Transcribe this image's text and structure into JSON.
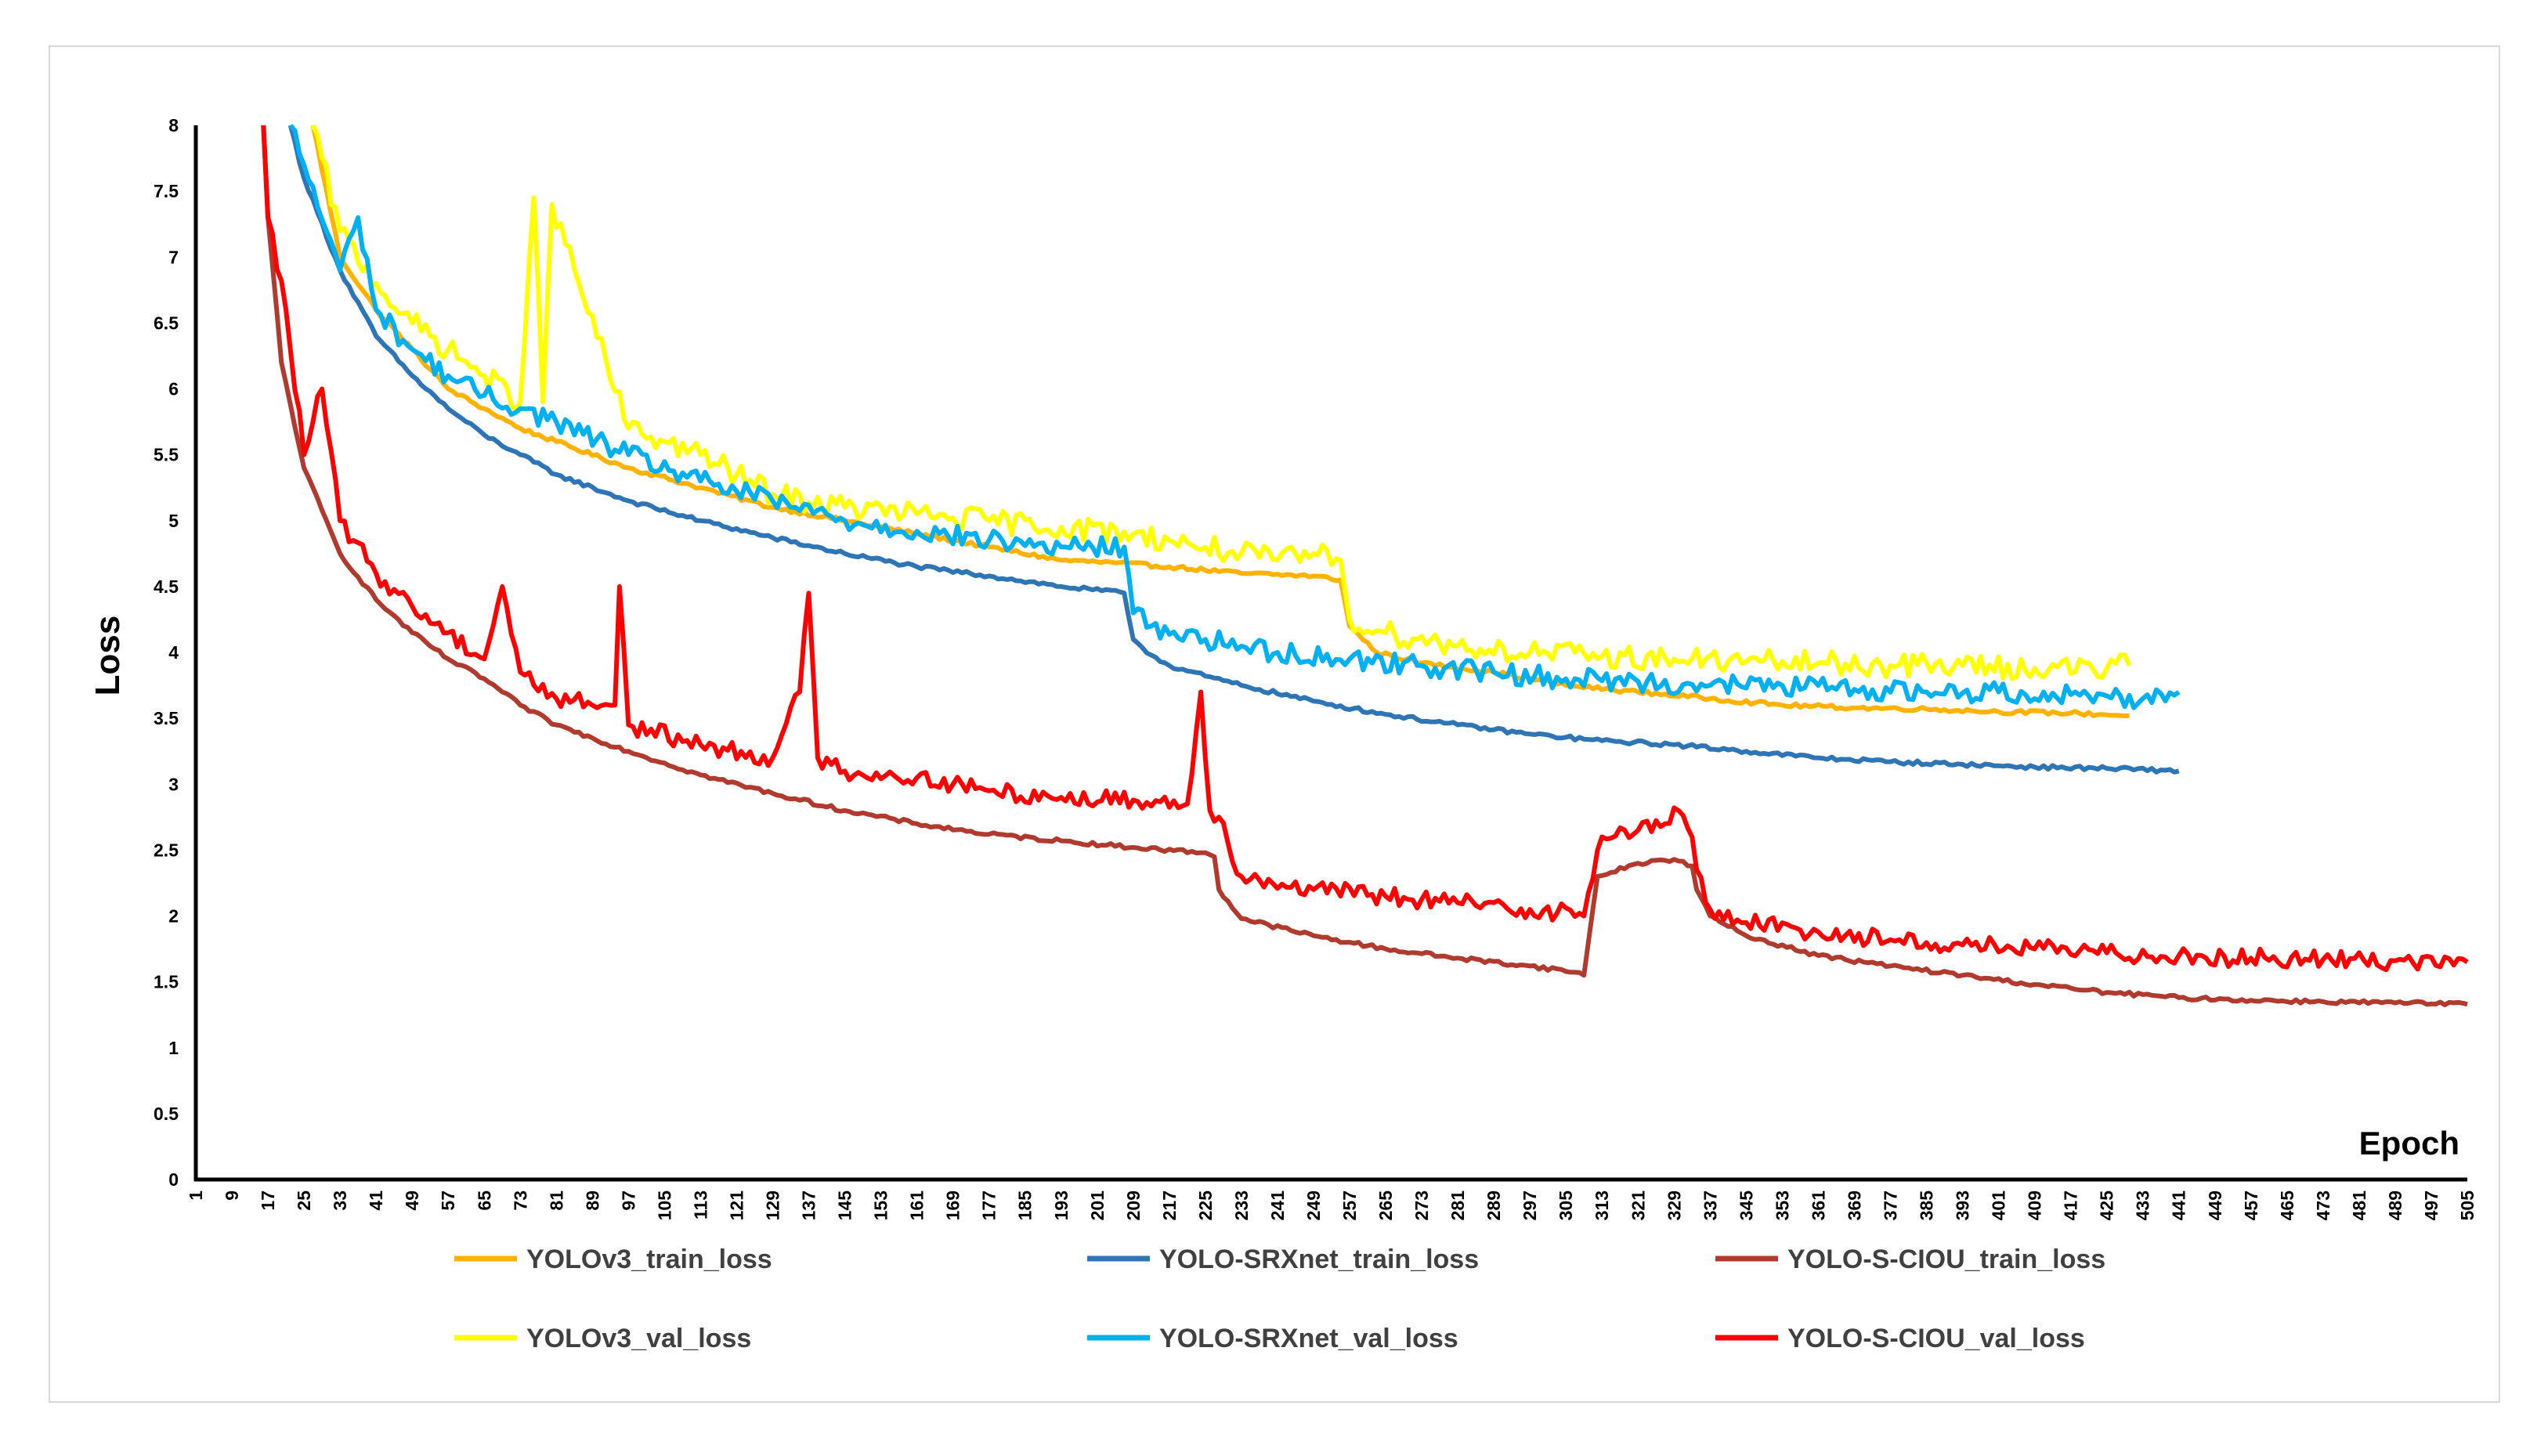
{
  "chart_data": {
    "type": "line",
    "title": "",
    "xlabel": "Epoch",
    "ylabel": "Loss",
    "ylim": [
      0,
      8
    ],
    "yticks": [
      "0",
      "0.5",
      "1",
      "1.5",
      "2",
      "2.5",
      "3",
      "3.5",
      "4",
      "4.5",
      "5",
      "5.5",
      "6",
      "6.5",
      "7",
      "7.5",
      "8"
    ],
    "xlim": [
      1,
      505
    ],
    "xticks": [
      1,
      9,
      17,
      25,
      33,
      41,
      49,
      57,
      65,
      73,
      81,
      89,
      97,
      105,
      113,
      121,
      129,
      137,
      145,
      153,
      161,
      169,
      177,
      185,
      193,
      201,
      209,
      217,
      225,
      233,
      241,
      249,
      257,
      265,
      273,
      281,
      289,
      297,
      305,
      313,
      321,
      329,
      337,
      345,
      353,
      361,
      369,
      377,
      385,
      393,
      401,
      409,
      417,
      425,
      433,
      441,
      449,
      457,
      465,
      473,
      481,
      489,
      497,
      505
    ],
    "grid": false,
    "legend_position": "bottom",
    "series": [
      {
        "name": "YOLOv3_train_loss",
        "color": "#FFB300",
        "x": [
          27,
          33,
          41,
          49,
          57,
          65,
          73,
          81,
          97,
          113,
          129,
          145,
          161,
          177,
          193,
          205,
          217,
          233,
          249,
          255,
          257,
          263,
          273,
          289,
          305,
          321,
          337,
          353,
          369,
          385,
          401,
          417,
          430
        ],
        "y": [
          8.0,
          7.0,
          6.6,
          6.3,
          6.0,
          5.85,
          5.7,
          5.6,
          5.4,
          5.25,
          5.1,
          5.0,
          4.9,
          4.8,
          4.7,
          4.68,
          4.65,
          4.6,
          4.58,
          4.55,
          4.2,
          4.0,
          3.92,
          3.85,
          3.75,
          3.7,
          3.65,
          3.6,
          3.58,
          3.57,
          3.55,
          3.54,
          3.52
        ]
      },
      {
        "name": "YOLO-SRXnet_train_loss",
        "color": "#2E75B6",
        "x": [
          22,
          25,
          33,
          41,
          49,
          57,
          65,
          73,
          81,
          97,
          113,
          129,
          145,
          161,
          177,
          193,
          207,
          209,
          213,
          217,
          225,
          233,
          249,
          265,
          281,
          297,
          313,
          329,
          345,
          361,
          377,
          393,
          409,
          425,
          441
        ],
        "y": [
          8.0,
          7.6,
          6.9,
          6.4,
          6.1,
          5.85,
          5.65,
          5.5,
          5.35,
          5.15,
          5.0,
          4.87,
          4.75,
          4.65,
          4.58,
          4.5,
          4.45,
          4.1,
          3.98,
          3.9,
          3.82,
          3.75,
          3.63,
          3.53,
          3.45,
          3.38,
          3.33,
          3.3,
          3.25,
          3.2,
          3.17,
          3.15,
          3.13,
          3.12,
          3.1
        ]
      },
      {
        "name": "YOLO-S-CIOU_train_loss",
        "color": "#B03A2E",
        "x": [
          16,
          17,
          20,
          25,
          33,
          41,
          49,
          57,
          65,
          73,
          81,
          97,
          113,
          129,
          145,
          161,
          177,
          193,
          209,
          225,
          227,
          228,
          233,
          249,
          265,
          281,
          297,
          308,
          309,
          312,
          321,
          329,
          333,
          334,
          337,
          345,
          361,
          377,
          393,
          409,
          425,
          441,
          457,
          473,
          489,
          505
        ],
        "y": [
          8.0,
          7.3,
          6.2,
          5.4,
          4.75,
          4.4,
          4.15,
          3.95,
          3.8,
          3.6,
          3.45,
          3.25,
          3.07,
          2.93,
          2.8,
          2.7,
          2.62,
          2.57,
          2.52,
          2.48,
          2.45,
          2.2,
          1.98,
          1.85,
          1.75,
          1.68,
          1.62,
          1.57,
          1.55,
          2.3,
          2.4,
          2.43,
          2.38,
          2.2,
          2.0,
          1.85,
          1.7,
          1.62,
          1.55,
          1.48,
          1.42,
          1.38,
          1.36,
          1.35,
          1.34,
          1.33
        ]
      },
      {
        "name": "YOLOv3_val_loss",
        "color": "#FFFF00",
        "x": [
          27,
          33,
          41,
          49,
          57,
          65,
          73,
          76,
          78,
          80,
          97,
          105,
          113,
          121,
          129,
          145,
          161,
          177,
          193,
          209,
          217,
          225,
          233,
          241,
          249,
          255,
          257,
          265,
          281,
          297,
          313,
          329,
          345,
          361,
          377,
          393,
          409,
          425,
          430
        ],
        "y": [
          8.0,
          7.2,
          6.8,
          6.5,
          6.3,
          6.1,
          5.9,
          7.45,
          5.9,
          7.4,
          5.7,
          5.6,
          5.5,
          5.35,
          5.2,
          5.1,
          5.05,
          5.0,
          4.95,
          4.9,
          4.85,
          4.8,
          4.75,
          4.7,
          4.75,
          4.7,
          4.25,
          4.15,
          4.05,
          4.0,
          3.97,
          3.95,
          3.93,
          3.92,
          3.9,
          3.9,
          3.88,
          3.88,
          3.9
        ]
      },
      {
        "name": "YOLO-SRXnet_val_loss",
        "color": "#00B0F0",
        "x": [
          22,
          25,
          33,
          37,
          41,
          49,
          57,
          65,
          73,
          81,
          97,
          113,
          129,
          145,
          161,
          177,
          193,
          207,
          209,
          213,
          225,
          241,
          257,
          273,
          289,
          305,
          321,
          337,
          353,
          369,
          385,
          401,
          417,
          425,
          433,
          441
        ],
        "y": [
          8.0,
          7.7,
          6.9,
          7.3,
          6.6,
          6.3,
          6.1,
          5.95,
          5.85,
          5.75,
          5.5,
          5.3,
          5.15,
          5.0,
          4.92,
          4.85,
          4.8,
          4.8,
          4.3,
          4.2,
          4.1,
          4.0,
          3.95,
          3.9,
          3.85,
          3.8,
          3.78,
          3.75,
          3.75,
          3.72,
          3.7,
          3.7,
          3.68,
          3.67,
          3.65,
          3.7
        ]
      },
      {
        "name": "YOLO-S-CIOU_val_loss",
        "color": "#FF0000",
        "x": [
          16,
          17,
          21,
          25,
          29,
          33,
          41,
          49,
          57,
          65,
          69,
          73,
          81,
          94,
          95,
          97,
          113,
          129,
          135,
          137,
          139,
          145,
          161,
          177,
          193,
          209,
          221,
          224,
          226,
          228,
          233,
          249,
          265,
          281,
          297,
          308,
          309,
          312,
          313,
          321,
          327,
          330,
          333,
          334,
          337,
          345,
          361,
          377,
          393,
          409,
          425,
          441,
          457,
          473,
          489,
          505
        ],
        "y": [
          8.0,
          7.3,
          6.6,
          5.5,
          6.0,
          5.0,
          4.6,
          4.35,
          4.15,
          3.95,
          4.5,
          3.85,
          3.65,
          3.6,
          4.5,
          3.45,
          3.3,
          3.2,
          3.7,
          4.45,
          3.2,
          3.1,
          3.05,
          2.95,
          2.9,
          2.88,
          2.85,
          3.7,
          2.8,
          2.75,
          2.3,
          2.2,
          2.15,
          2.1,
          2.05,
          2.02,
          2.0,
          2.5,
          2.6,
          2.65,
          2.7,
          2.8,
          2.6,
          2.35,
          2.05,
          1.95,
          1.88,
          1.82,
          1.78,
          1.75,
          1.72,
          1.7,
          1.68,
          1.67,
          1.66,
          1.65
        ]
      }
    ]
  }
}
